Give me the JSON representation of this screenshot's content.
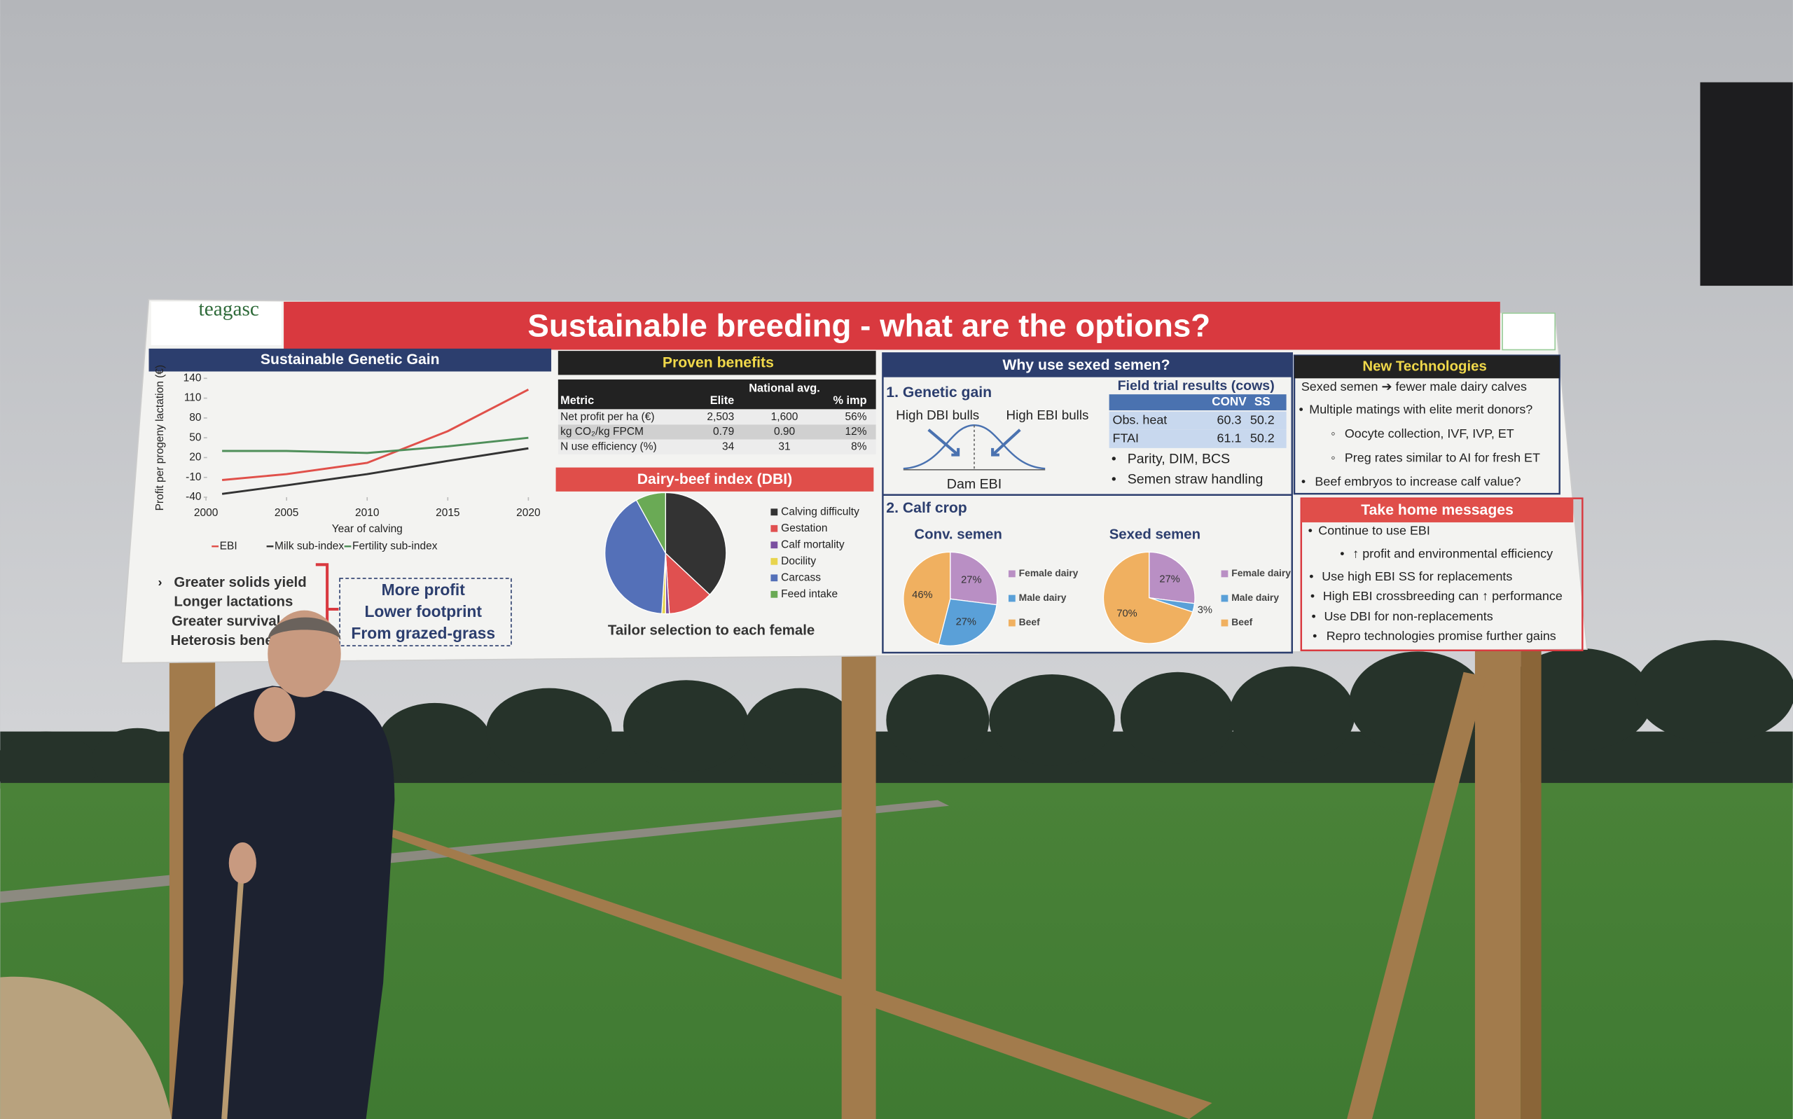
{
  "header": {
    "title": "Sustainable breeding - what are the options?",
    "logo": "teagasc"
  },
  "genetic_gain": {
    "title": "Sustainable Genetic Gain",
    "chart": {
      "type": "line",
      "y_label": "Profit per progeny lactation (€)",
      "x_label": "Year of calving",
      "x": [
        2001,
        2005,
        2010,
        2015,
        2020
      ],
      "xlim": [
        2000,
        2020
      ],
      "xticks": [
        2000,
        2005,
        2010,
        2015,
        2020
      ],
      "ylim": [
        -40,
        140
      ],
      "yticks": [
        -40,
        -10,
        20,
        50,
        80,
        110,
        140
      ],
      "series": [
        {
          "name": "EBI",
          "color": "#e0504a",
          "values": [
            -14,
            -5,
            12,
            60,
            123
          ]
        },
        {
          "name": "Milk sub-index",
          "color": "#333333",
          "values": [
            -35,
            -22,
            -5,
            15,
            34
          ]
        },
        {
          "name": "Fertility sub-index",
          "color": "#4f8f5a",
          "values": [
            30,
            30,
            27,
            37,
            50
          ]
        }
      ]
    },
    "bullets": [
      "Greater solids yield",
      "Longer lactations",
      "Greater survival",
      "Heterosis benefits"
    ],
    "box": [
      "More profit",
      "Lower footprint",
      "From grazed-grass"
    ]
  },
  "proven_benefits": {
    "title": "Proven benefits",
    "table": {
      "header": [
        "Metric",
        "Elite",
        "National avg.",
        "% imp"
      ],
      "rows": [
        [
          "Net profit per ha (€)",
          "2,503",
          "1,600",
          "56%"
        ],
        [
          "kg CO₂/kg FPCM",
          "0.79",
          "0.90",
          "12%"
        ],
        [
          "N use efficiency (%)",
          "34",
          "31",
          "8%"
        ]
      ]
    }
  },
  "dbi": {
    "title": "Dairy-beef index (DBI)",
    "chart": {
      "type": "pie",
      "categories": [
        "Calving difficulty",
        "Gestation",
        "Calf mortality",
        "Docility",
        "Carcass",
        "Feed intake"
      ],
      "values": [
        37,
        12,
        1,
        1,
        41,
        8
      ],
      "colors": [
        "#333333",
        "#e05050",
        "#7b4fa0",
        "#e8d44d",
        "#5470b8",
        "#6aaa55"
      ]
    },
    "caption": "Tailor selection to each female"
  },
  "sexed_semen": {
    "title": "Why use sexed semen?",
    "genetic_gain": {
      "heading": "1.  Genetic gain",
      "left": "High DBI bulls",
      "right": "High EBI bulls",
      "bottom": "Dam EBI"
    },
    "field_trial": {
      "title": "Field trial results (cows)",
      "header": [
        "CONV",
        "SS"
      ],
      "rows": [
        [
          "Obs. heat",
          "60.3",
          "50.2"
        ],
        [
          "FTAI",
          "61.1",
          "50.2"
        ]
      ]
    },
    "bullets": [
      "Parity, DIM, BCS",
      "Semen straw handling"
    ],
    "calf_crop": {
      "heading": "2. Calf crop",
      "categories": [
        "Female dairy",
        "Male dairy",
        "Beef"
      ],
      "colors": [
        "#b98fc4",
        "#5aa0d8",
        "#f0b060"
      ],
      "charts": [
        {
          "type": "pie",
          "title": "Conv. semen",
          "values": [
            27,
            27,
            46
          ],
          "value_labels": [
            "27%",
            "27%",
            "46%"
          ]
        },
        {
          "type": "pie",
          "title": "Sexed semen",
          "values": [
            27,
            3,
            70
          ],
          "value_labels": [
            "27%",
            "3%",
            "70%"
          ]
        }
      ]
    }
  },
  "new_technologies": {
    "title": "New Technologies",
    "items": [
      "Sexed semen ➔ fewer male dairy calves",
      "Multiple matings with elite merit donors?",
      "Beef embryos to increase calf value?"
    ],
    "sub_items": [
      "Oocyte collection, IVF, IVP, ET",
      "Preg rates similar to AI for fresh ET"
    ]
  },
  "take_home": {
    "title": "Take home messages",
    "items": [
      "Continue to use EBI",
      "Use high EBI SS for replacements",
      "High EBI crossbreeding can ↑ performance",
      "Use DBI for non-replacements",
      "Repro technologies promise further gains"
    ],
    "sub_items": [
      "↑ profit and environmental efficiency"
    ]
  }
}
